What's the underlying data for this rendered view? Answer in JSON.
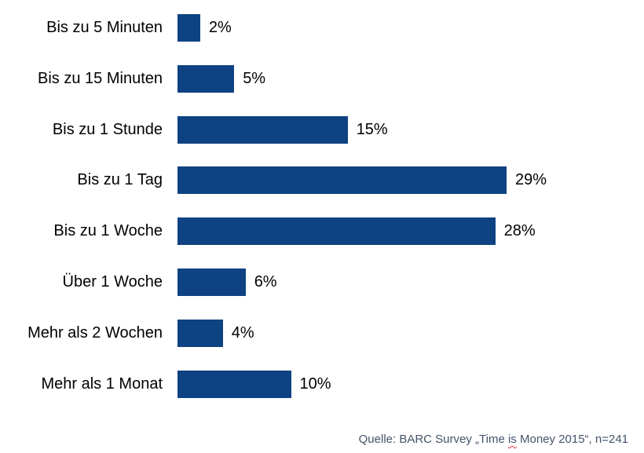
{
  "chart_data": {
    "type": "bar",
    "orientation": "horizontal",
    "title": "",
    "xlabel": "",
    "ylabel": "",
    "categories": [
      "Bis zu 5 Minuten",
      "Bis zu 15 Minuten",
      "Bis zu 1 Stunde",
      "Bis zu 1 Tag",
      "Bis zu 1 Woche",
      "Über 1 Woche",
      "Mehr als 2 Wochen",
      "Mehr als 1 Monat"
    ],
    "values": [
      2,
      5,
      15,
      29,
      28,
      6,
      4,
      10
    ],
    "value_labels": [
      "2%",
      "5%",
      "15%",
      "29%",
      "28%",
      "6%",
      "4%",
      "10%"
    ],
    "unit": "%",
    "xlim": [
      0,
      30
    ],
    "gridlines": false,
    "axes_visible": false,
    "value_label_position": "end-of-bar",
    "bar_color": "#0E4282",
    "category_label_color": "#000000",
    "value_label_color": "#000000"
  },
  "footer": {
    "text": "Quelle: BARC Survey „Time is Money 2015“, n=241",
    "prefix": "Quelle: BARC Survey „Time ",
    "spellcheck_word": "is",
    "suffix": " Money 2015“, n=241",
    "color": "#44546A",
    "spellcheck_underline_color": "#E53935"
  }
}
